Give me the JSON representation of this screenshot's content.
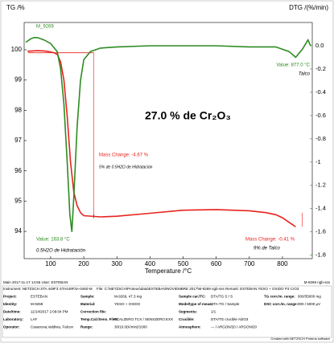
{
  "chart_data": {
    "type": "line",
    "y_label": "TG /%",
    "y2_label": "DTG /(%/min)",
    "x_label": "Temperature /°C",
    "xlim": [
      20,
      890
    ],
    "xticks": [
      100,
      200,
      300,
      400,
      500,
      600,
      700,
      800
    ],
    "ylim": [
      93.1,
      100.9
    ],
    "yticks": [
      94,
      95,
      96,
      97,
      98,
      99,
      100
    ],
    "y2lim": [
      -1.83,
      0.2
    ],
    "y2ticks": [
      {
        "value": 0,
        "label": "0.0"
      },
      -0.2,
      -0.4,
      -0.6,
      -0.8,
      -1,
      -1.2,
      -1.4,
      -1.6,
      -1.8
    ],
    "series": [
      {
        "name": "TG",
        "color": "#e8231d",
        "x": [
          30,
          60,
          80,
          100,
          110,
          120,
          130,
          140,
          150,
          160,
          170,
          180,
          190,
          200,
          250,
          300,
          400,
          500,
          600,
          700,
          750,
          780,
          800,
          820,
          840
        ],
        "values": [
          99.95,
          99.97,
          99.96,
          99.93,
          99.9,
          99.85,
          99.6,
          99.0,
          97.8,
          96.3,
          95.3,
          94.85,
          94.62,
          94.52,
          94.48,
          94.5,
          94.6,
          94.7,
          94.72,
          94.68,
          94.62,
          94.55,
          94.45,
          94.3,
          94.15
        ]
      },
      {
        "name": "DTG",
        "color": "#2e8b22",
        "axis": "y2",
        "x": [
          25,
          40,
          50,
          60,
          80,
          100,
          120,
          130,
          140,
          150,
          158,
          164,
          170,
          180,
          190,
          200,
          220,
          250,
          300,
          400,
          500,
          600,
          700,
          780,
          820,
          840,
          860,
          877,
          885
        ],
        "values": [
          0.03,
          0.06,
          0.07,
          0.07,
          0.05,
          0.02,
          -0.05,
          -0.2,
          -0.5,
          -1.0,
          -1.45,
          -1.6,
          -1.3,
          -0.7,
          -0.3,
          -0.12,
          -0.05,
          -0.02,
          -0.01,
          0.0,
          0.0,
          0.0,
          -0.01,
          -0.01,
          -0.05,
          -0.1,
          -0.03,
          0.05,
          0.0
        ]
      }
    ],
    "annotations": [
      {
        "text": "M_9269",
        "color": "#2e8b22"
      },
      {
        "text": "Value: 163.8 °C",
        "color": "#2e8b22"
      },
      {
        "text": "0.5H2O de Hidratación",
        "color": "#000000"
      },
      {
        "text": "Mass Change: -4.67 %",
        "color": "#e8231d"
      },
      {
        "text": "5% de 0.5H2O de Hidratación",
        "color": "#000000"
      },
      {
        "text": "Value: 877.0 °C",
        "color": "#2e8b22"
      },
      {
        "text": "Talco",
        "color": "#000000"
      },
      {
        "text": "Mass Change: -0.41 %",
        "color": "#e8231d"
      },
      {
        "text": "9% de Talco",
        "color": "#000000"
      },
      {
        "text": "27.0 % de Cr₂O₃",
        "color": "#000000"
      }
    ]
  },
  "footer": {
    "left": "Main   2017-11-17 14:55   User: ESTEBAN",
    "right": "M-9269 ngb-sss"
  },
  "info": {
    "header": [
      "Instrument:  NETZSCH STA 449F3 STA449F3A-0460-M",
      "File:  C:\\NETZSCH\\Proteus\\data\\ESTEBAN\\NOVIEMBRE 2017\\M-9269 ngb-sss",
      "Remark:  ESTEBAN YESO + OXIDO P3 CrO3"
    ],
    "rows": [
      [
        "Project:",
        "ESTEBAN",
        "Sample:",
        "M-9269, 47.3 mg",
        "Sample car./TC:",
        "DTA/TG S / S",
        "TG corr./m. range:",
        "000/35000 mg"
      ],
      [
        "Identity:",
        "M-9269",
        "Material:",
        "YESO + OXIDO",
        "Mode/type of meas.:",
        "DTA-TG / Sample",
        "DSC corr./m. range:",
        "000 / 5000 µV"
      ],
      [
        "Date/time:",
        "11/14/2017 2:09:04 PM",
        "Correction file:",
        "",
        "Segments:",
        "1/1",
        "",
        ""
      ],
      [
        "Laboratory:",
        "LAF",
        "Temp.Cal./Sens. Files:",
        "TCALZERO.TCX / SENSZERO.EXX",
        "Crucible:",
        "DTA/TG crucible Al2O3",
        "",
        ""
      ],
      [
        "Operator:",
        "Casanova,Valdivia, Falcon",
        "Range:",
        "30/10.0(K/min)/1000",
        "Atmosphere:",
        "--- / ARGON/20 / ARGON/20",
        "",
        ""
      ]
    ],
    "credit": "Created with NETZSCH Proteus software"
  }
}
